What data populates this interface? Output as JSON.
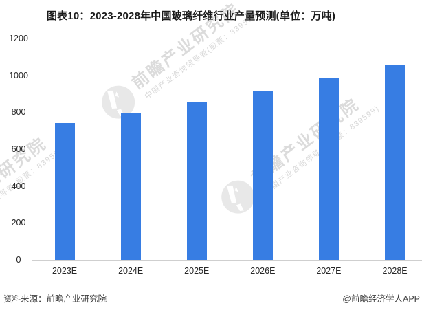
{
  "chart_data": {
    "type": "bar",
    "title": "图表10：2023-2028年中国玻璃纤维行业产量预测(单位：万吨)",
    "categories": [
      "2023E",
      "2024E",
      "2025E",
      "2026E",
      "2027E",
      "2028E"
    ],
    "values": [
      740,
      795,
      855,
      915,
      985,
      1060
    ],
    "xlabel": "",
    "ylabel": "",
    "ylim": [
      0,
      1200
    ],
    "yticks": [
      0,
      200,
      400,
      600,
      800,
      1000,
      1200
    ],
    "grid": false,
    "legend_position": "none",
    "bar_color": "#377de3"
  },
  "watermark": {
    "big_text": "前瞻产业研究院",
    "small_text": "中国产业咨询领导者(股票：839599)"
  },
  "footer": {
    "source": "资料来源：前瞻产业研究院",
    "credit": "@前瞻经济学人APP"
  },
  "colors": {
    "bar": "#377de3",
    "axis_line": "#cfcfcf",
    "text": "#262626",
    "title": "#1a1a1a",
    "footer_text": "#3d3d3d"
  }
}
